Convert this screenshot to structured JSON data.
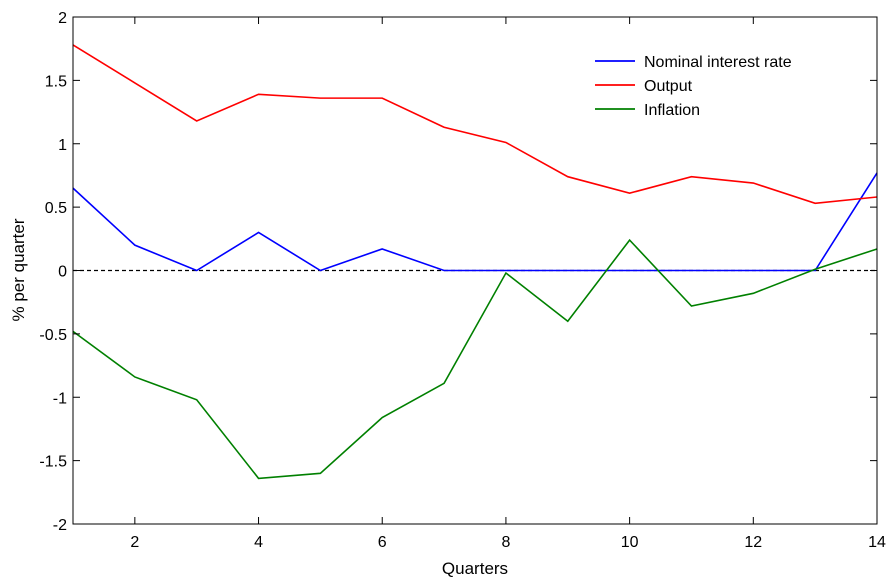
{
  "chart_data": {
    "type": "line",
    "title": "",
    "xlabel": "Quarters",
    "ylabel": "% per quarter",
    "xlim": [
      1,
      14
    ],
    "ylim": [
      -2,
      2
    ],
    "xticks": [
      2,
      4,
      6,
      8,
      10,
      12,
      14
    ],
    "yticks": [
      -2,
      -1.5,
      -1,
      -0.5,
      0,
      0.5,
      1,
      1.5,
      2
    ],
    "xtick_labels": [
      "2",
      "4",
      "6",
      "8",
      "10",
      "12",
      "14"
    ],
    "ytick_labels": [
      "-2",
      "-1.5",
      "-1",
      "-0.5",
      "0",
      "0.5",
      "1",
      "1.5",
      "2"
    ],
    "grid": false,
    "legend_position": "top-right",
    "reference_line": {
      "y": 0,
      "style": "dashed",
      "color": "#000000"
    },
    "x": [
      1,
      2,
      3,
      4,
      5,
      6,
      7,
      8,
      9,
      10,
      11,
      12,
      13,
      14
    ],
    "series": [
      {
        "name": "Nominal interest rate",
        "color": "#0000ff",
        "values": [
          0.65,
          0.2,
          0.0,
          0.3,
          0.0,
          0.17,
          0.0,
          0.0,
          0.0,
          0.0,
          0.0,
          0.0,
          0.0,
          0.77
        ]
      },
      {
        "name": "Output",
        "color": "#ff0000",
        "values": [
          1.78,
          1.48,
          1.18,
          1.39,
          1.36,
          1.36,
          1.13,
          1.01,
          0.74,
          0.61,
          0.74,
          0.69,
          0.53,
          0.58
        ]
      },
      {
        "name": "Inflation",
        "color": "#008000",
        "values": [
          -0.48,
          -0.84,
          -1.02,
          -1.64,
          -1.6,
          -1.16,
          -0.89,
          -0.02,
          -0.4,
          0.24,
          -0.28,
          -0.18,
          0.01,
          0.17
        ]
      }
    ]
  }
}
